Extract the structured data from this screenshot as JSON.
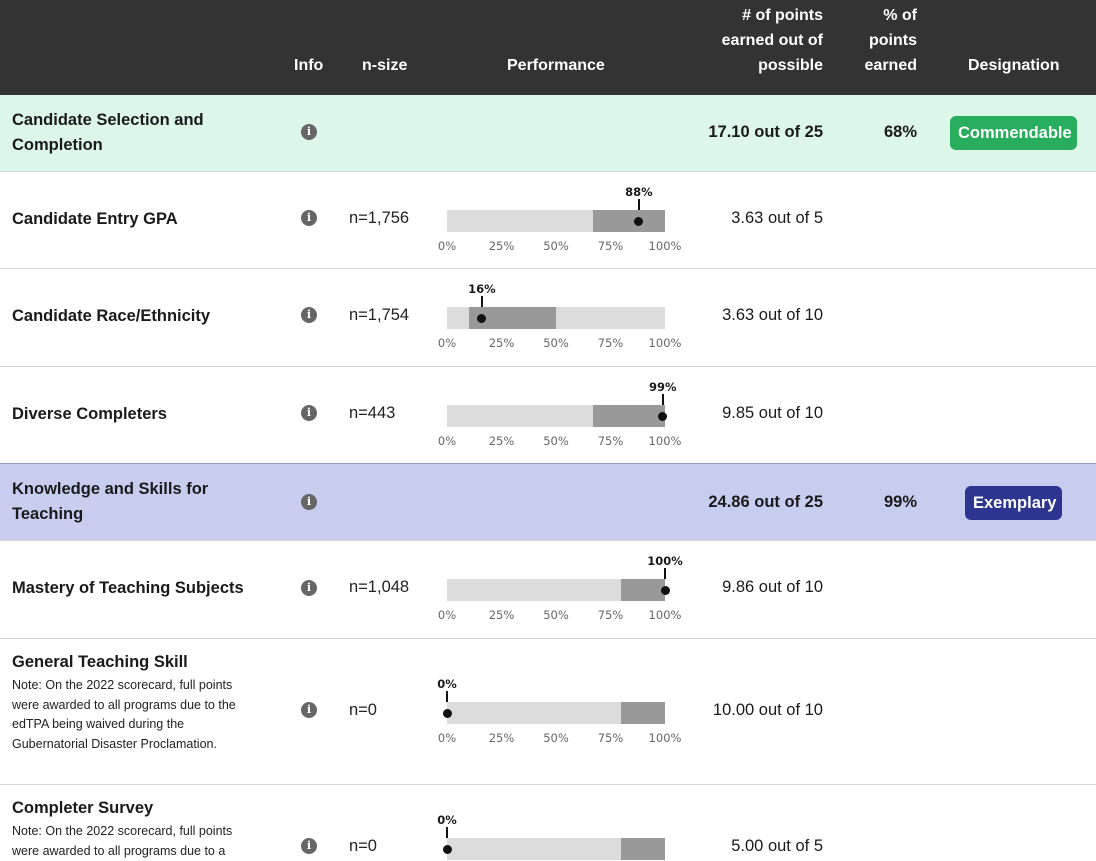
{
  "header": {
    "info": "Info",
    "nsize": "n-size",
    "performance": "Performance",
    "points_line1": "# of points",
    "points_line2": "earned out of",
    "points_line3": "possible",
    "pct_line1": "% of",
    "pct_line2": "points",
    "pct_line3": "earned",
    "designation": "Designation"
  },
  "ticks": [
    "0%",
    "25%",
    "50%",
    "75%",
    "100%"
  ],
  "colors": {
    "header_bg": "#333333",
    "commendable": "#27ad5b",
    "exemplary": "#2c3590",
    "green_row": "#dcf7e9",
    "blue_row": "#c8cdf0"
  },
  "categories": {
    "selection": {
      "label_line1": "Candidate Selection and",
      "label_line2": "Completion",
      "points": "17.10 out of 25",
      "pct": "68%",
      "designation": "Commendable"
    },
    "knowledge": {
      "label_line1": "Knowledge and Skills for",
      "label_line2": "Teaching",
      "points": "24.86 out of 25",
      "pct": "99%",
      "designation": "Exemplary"
    }
  },
  "metrics": {
    "gpa": {
      "label": "Candidate Entry GPA",
      "nsize": "n=1,756",
      "value_label": "88%",
      "value": 88,
      "fill_from": 67,
      "fill_to": 100,
      "points": "3.63 out of 5"
    },
    "race": {
      "label": "Candidate Race/Ethnicity",
      "nsize": "n=1,754",
      "value_label": "16%",
      "value": 16,
      "fill_from": 10,
      "fill_to": 50,
      "points": "3.63 out of 10"
    },
    "diverse": {
      "label": "Diverse Completers",
      "nsize": "n=443",
      "value_label": "99%",
      "value": 99,
      "fill_from": 67,
      "fill_to": 100,
      "points": "9.85 out of 10"
    },
    "mastery": {
      "label": "Mastery of Teaching Subjects",
      "nsize": "n=1,048",
      "value_label": "100%",
      "value": 100,
      "fill_from": 80,
      "fill_to": 100,
      "points": "9.86 out of 10"
    },
    "general": {
      "label": "General Teaching Skill",
      "note_line1": "Note: On the 2022 scorecard, full points",
      "note_line2": "were awarded to all programs due to the",
      "note_line3": "edTPA being waived during the",
      "note_line4": "Gubernatorial Disaster Proclamation.",
      "nsize": "n=0",
      "value_label": "0%",
      "value": 0,
      "fill_from": 80,
      "fill_to": 100,
      "points": "10.00 out of 10"
    },
    "survey": {
      "label": "Completer Survey",
      "note_line1": "Note: On the 2022 scorecard, full points",
      "note_line2": "were awarded to all programs due to a",
      "nsize": "n=0",
      "value_label": "0%",
      "value": 0,
      "fill_from": 80,
      "fill_to": 100,
      "points": "5.00 out of 5"
    }
  }
}
